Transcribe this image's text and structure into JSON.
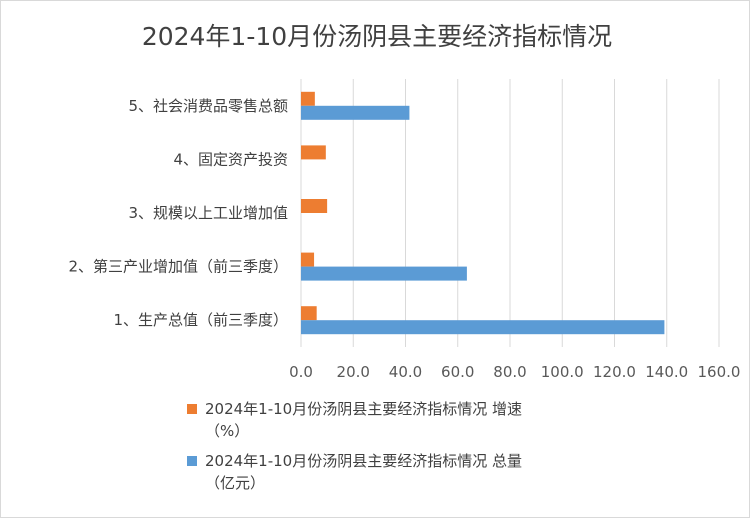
{
  "chart_data": {
    "type": "bar",
    "orientation": "horizontal",
    "title": "2024年1-10月份汤阴县主要经济指标情况",
    "categories": [
      "1、生产总值（前三季度）",
      "2、第三产业增加值（前三季度）",
      "3、规模以上工业增加值",
      "4、固定资产投资",
      "5、社会消费品零售总额"
    ],
    "series": [
      {
        "name": "2024年1-10月份汤阴县主要经济指标情况 增速（%）",
        "color": "#ED7D31",
        "values": [
          6.0,
          5.0,
          10.0,
          9.5,
          5.3
        ]
      },
      {
        "name": "2024年1-10月份汤阴县主要经济指标情况 总量（亿元）",
        "color": "#5B9BD5",
        "values": [
          139.1,
          63.5,
          null,
          null,
          41.5
        ]
      }
    ],
    "x_ticks": [
      "0.0",
      "20.0",
      "40.0",
      "60.0",
      "80.0",
      "100.0",
      "120.0",
      "140.0",
      "160.0"
    ],
    "xlim": [
      0,
      160
    ],
    "grid": "vertical",
    "legend_position": "bottom"
  }
}
